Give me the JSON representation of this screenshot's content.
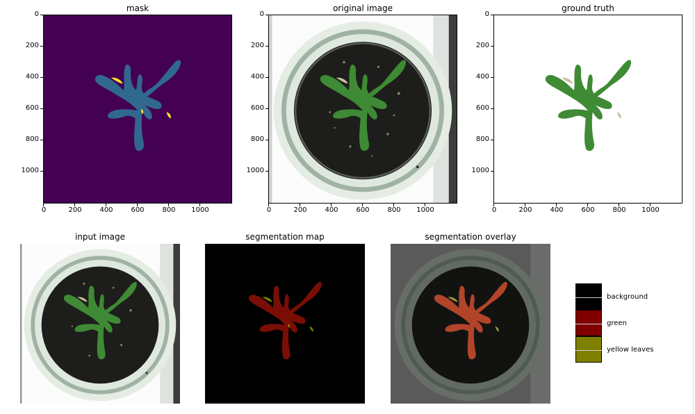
{
  "top_row": {
    "mask": {
      "title": "mask"
    },
    "original": {
      "title": "original image"
    },
    "ground_truth": {
      "title": "ground truth"
    },
    "y_ticks": [
      "0",
      "200",
      "400",
      "600",
      "800",
      "1000"
    ],
    "x_ticks": [
      "0",
      "200",
      "400",
      "600",
      "800",
      "1000"
    ]
  },
  "bottom_row": {
    "input": {
      "title": "input image"
    },
    "segmentation_map": {
      "title": "segmentation map"
    },
    "overlay": {
      "title": "segmentation overlay"
    }
  },
  "legend": {
    "items": [
      {
        "label": "background",
        "color": "#000000"
      },
      {
        "label": "green",
        "color": "#800000"
      },
      {
        "label": "yellow leaves",
        "color": "#808000"
      }
    ]
  },
  "colors": {
    "mask_background": "#440154",
    "mask_plant": "#31688e",
    "mask_yellow": "#fde725",
    "plant_green": "#3f8a34",
    "seg_red": "#7a0e05",
    "seg_yellow": "#808000"
  }
}
